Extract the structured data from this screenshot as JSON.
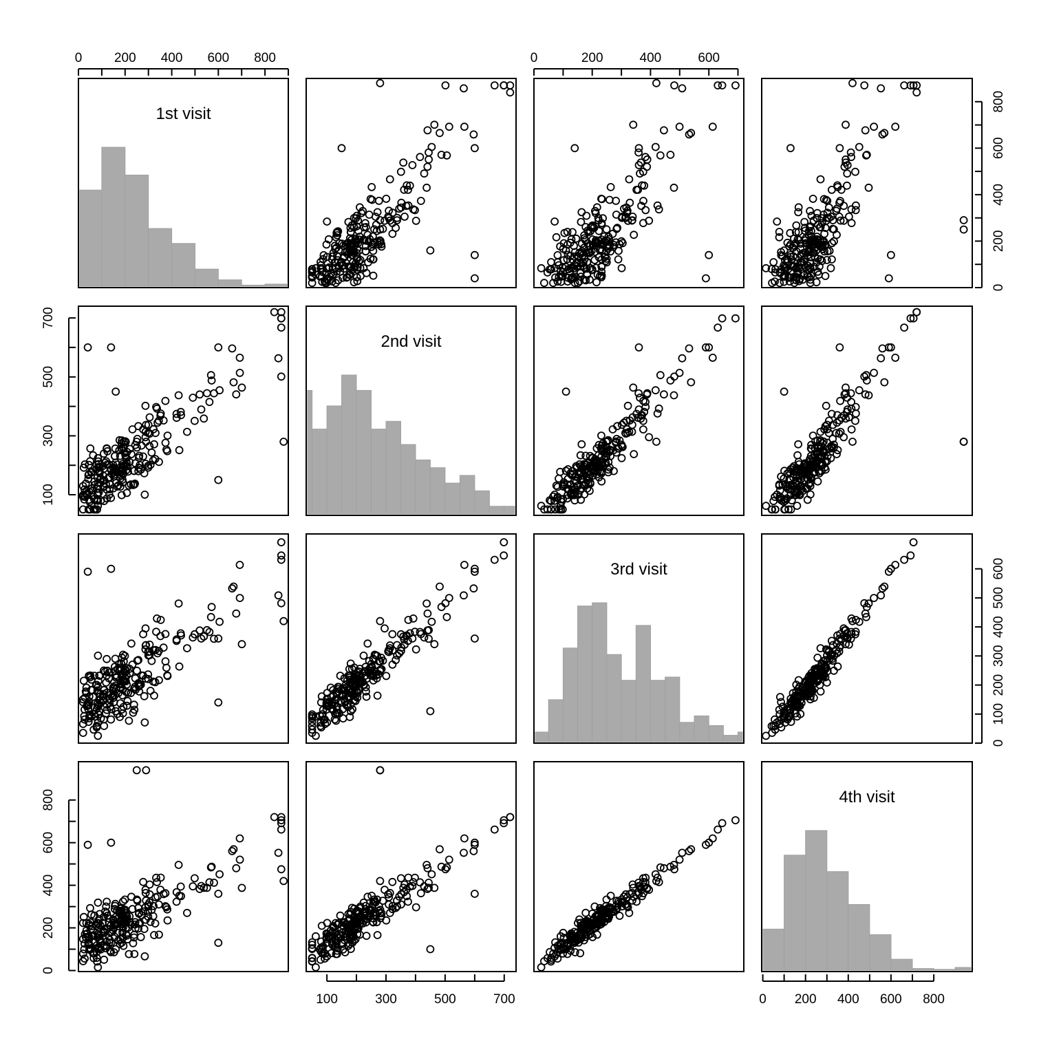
{
  "chart_data": {
    "type": "scatter",
    "subtype": "scatterplot-matrix",
    "variables": [
      "1st visit",
      "2nd visit",
      "3rd visit",
      "4th visit"
    ],
    "ranges": [
      [
        0,
        900
      ],
      [
        30,
        740
      ],
      [
        0,
        720
      ],
      [
        -5,
        980
      ]
    ],
    "axis_ticks": {
      "top_var0": [
        0,
        200,
        400,
        600,
        800
      ],
      "top_var2": [
        0,
        200,
        400,
        600
      ],
      "left_var1": [
        100,
        300,
        500,
        700
      ],
      "left_var3": [
        0,
        200,
        400,
        600,
        800
      ],
      "right_var0": [
        0,
        200,
        400,
        600,
        800
      ],
      "right_var2": [
        0,
        100,
        200,
        300,
        400,
        500,
        600
      ],
      "bottom_var1": [
        100,
        300,
        500,
        700
      ],
      "bottom_var3": [
        0,
        200,
        400,
        600,
        800
      ]
    },
    "histograms": [
      {
        "variable": "1st visit",
        "bins": [
          0,
          100,
          200,
          300,
          400,
          500,
          600,
          700,
          800,
          900
        ],
        "counts": [
          45,
          65,
          52,
          27,
          20,
          8,
          3,
          0.5,
          1
        ]
      },
      {
        "variable": "2nd visit",
        "bins": [
          30,
          50,
          100,
          150,
          200,
          250,
          300,
          350,
          400,
          450,
          500,
          550,
          600,
          650,
          700,
          750
        ],
        "counts": [
          16,
          11,
          14,
          18,
          16,
          11,
          12,
          9,
          7,
          6,
          4,
          5,
          3,
          1,
          1
        ]
      },
      {
        "variable": "3rd visit",
        "bins": [
          0,
          50,
          100,
          150,
          200,
          250,
          300,
          350,
          400,
          450,
          500,
          550,
          600,
          650,
          700,
          750
        ],
        "counts": [
          3,
          13,
          29,
          42,
          43,
          27,
          19,
          36,
          19,
          20,
          6,
          8,
          5,
          2,
          3
        ]
      },
      {
        "variable": "4th visit",
        "bins": [
          0,
          100,
          200,
          300,
          400,
          500,
          600,
          700,
          800,
          900,
          1000
        ],
        "counts": [
          15,
          42,
          51,
          36,
          24,
          13,
          4,
          0.6,
          0.3,
          1
        ]
      }
    ],
    "grid": false,
    "legend": "none"
  }
}
